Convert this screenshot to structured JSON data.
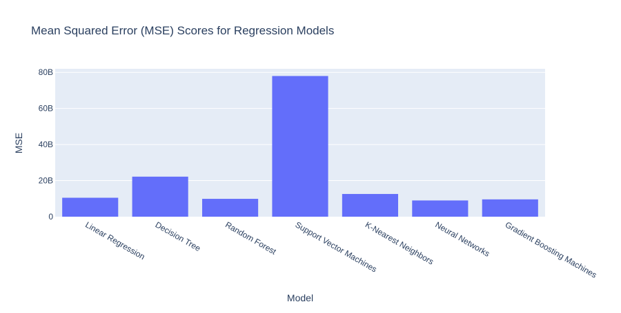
{
  "chart_data": {
    "type": "bar",
    "title": "Mean Squared Error (MSE) Scores for Regression Models",
    "xlabel": "Model",
    "ylabel": "MSE",
    "categories": [
      "Linear Regression",
      "Decision Tree",
      "Random Forest",
      "Support Vector Machines",
      "K-Nearest Neighbors",
      "Neural Networks",
      "Gradient Boosting Machines"
    ],
    "values": [
      10500000000,
      22200000000,
      9900000000,
      78000000000,
      12600000000,
      9000000000,
      9600000000
    ],
    "ylim": [
      0,
      82000000000
    ],
    "yticks": [
      0,
      20000000000,
      40000000000,
      60000000000,
      80000000000
    ],
    "ytick_labels": [
      "0",
      "20B",
      "40B",
      "60B",
      "80B"
    ],
    "grid": true,
    "bar_color": "#636efa",
    "plot_background": "#e5ecf6"
  }
}
